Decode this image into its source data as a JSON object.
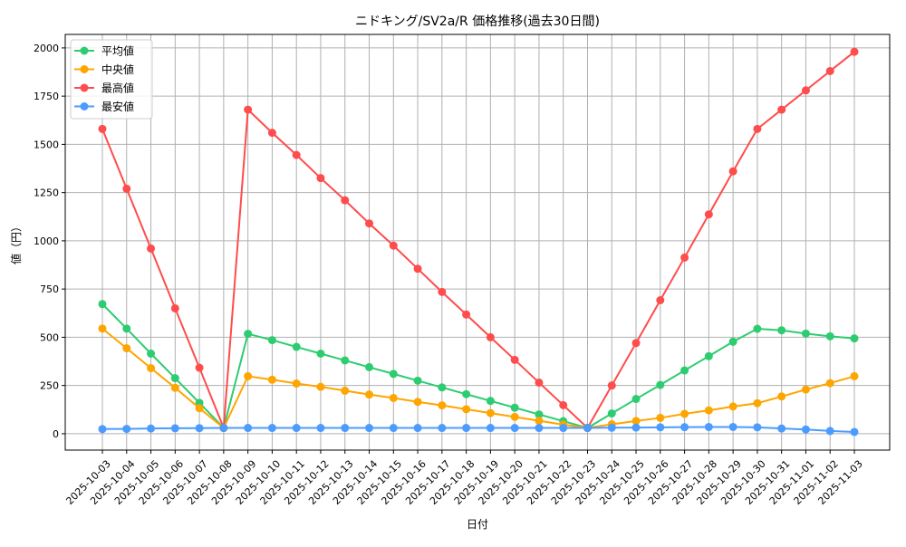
{
  "chart_data": {
    "type": "line",
    "title": "ニドキング/SV2a/R 価格推移(過去30日間)",
    "xlabel": "日付",
    "ylabel": "値（円）",
    "ylim": [
      -85,
      2070
    ],
    "yticks": [
      0,
      250,
      500,
      750,
      1000,
      1250,
      1500,
      1750,
      2000
    ],
    "grid": true,
    "legend_position": "top-left",
    "x": [
      "2025-10-03",
      "2025-10-04",
      "2025-10-05",
      "2025-10-06",
      "2025-10-07",
      "2025-10-08",
      "2025-10-09",
      "2025-10-10",
      "2025-10-11",
      "2025-10-12",
      "2025-10-13",
      "2025-10-14",
      "2025-10-15",
      "2025-10-16",
      "2025-10-17",
      "2025-10-18",
      "2025-10-19",
      "2025-10-20",
      "2025-10-21",
      "2025-10-22",
      "2025-10-23",
      "2025-10-24",
      "2025-10-25",
      "2025-10-26",
      "2025-10-27",
      "2025-10-28",
      "2025-10-29",
      "2025-10-30",
      "2025-10-31",
      "2025-11-01",
      "2025-11-02",
      "2025-11-03"
    ],
    "series": [
      {
        "name": "平均値",
        "color": "#2ecc71",
        "values": [
          672,
          545,
          415,
          288,
          160,
          30,
          518,
          485,
          450,
          415,
          380,
          345,
          310,
          275,
          240,
          205,
          170,
          135,
          100,
          65,
          30,
          105,
          180,
          253,
          328,
          402,
          477,
          544,
          536,
          519,
          505,
          494
        ]
      },
      {
        "name": "中央値",
        "color": "#ffa500",
        "values": [
          545,
          443,
          340,
          238,
          132,
          30,
          298,
          280,
          260,
          243,
          223,
          203,
          185,
          165,
          147,
          127,
          107,
          87,
          67,
          47,
          30,
          49,
          66,
          82,
          103,
          121,
          141,
          158,
          193,
          229,
          262,
          298
        ]
      },
      {
        "name": "最高値",
        "color": "#ff4c4c",
        "values": [
          1580,
          1270,
          960,
          650,
          342,
          30,
          1680,
          1560,
          1445,
          1325,
          1210,
          1090,
          975,
          855,
          735,
          618,
          500,
          383,
          265,
          148,
          30,
          250,
          470,
          692,
          913,
          1137,
          1360,
          1580,
          1680,
          1780,
          1880,
          1980
        ]
      },
      {
        "name": "最安値",
        "color": "#4c9bff",
        "values": [
          24,
          25,
          27,
          28,
          29,
          30,
          30,
          30,
          30,
          30,
          30,
          30,
          30,
          30,
          30,
          30,
          30,
          30,
          30,
          30,
          30,
          31,
          32,
          33,
          34,
          35,
          35,
          33,
          27,
          22,
          14,
          9
        ]
      }
    ]
  }
}
